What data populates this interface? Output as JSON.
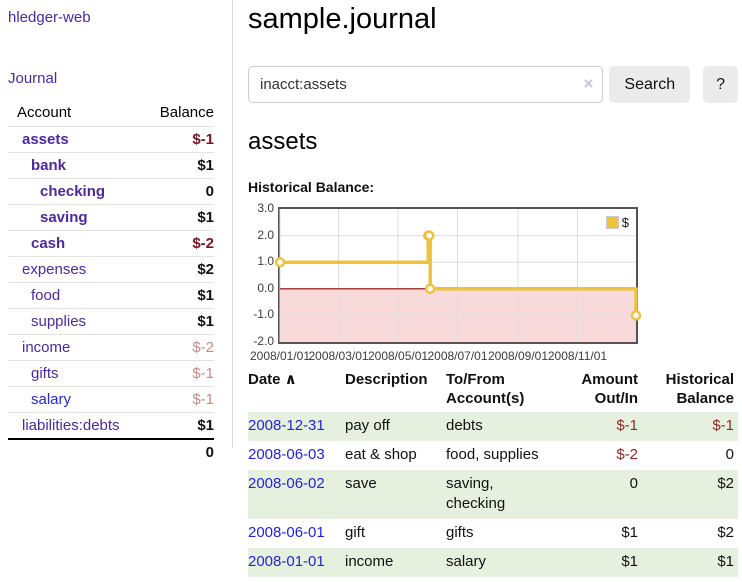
{
  "colors": {
    "link_purple": "#4b2a9a",
    "link_blue": "#2727d4",
    "negative_strong": "#7d1220",
    "negative_soft": "#c68989",
    "negative_table": "#8e2a2a",
    "row_stripe_green": "#e6f0de",
    "series_gold": "#edc240",
    "negative_region_pink": "#f9dada",
    "zero_line_red": "#8b0000",
    "grid_line": "#dddddd",
    "chart_border": "#545454"
  },
  "sidebar": {
    "brand": "hledger-web",
    "journal_link": "Journal",
    "accounts": {
      "header_account": "Account",
      "header_balance": "Balance",
      "rows": [
        {
          "name": "assets",
          "indent": 1,
          "bold": true,
          "balance": "$-1",
          "neg": "strong"
        },
        {
          "name": "bank",
          "indent": 2,
          "bold": true,
          "balance": "$1"
        },
        {
          "name": "checking",
          "indent": 3,
          "bold": true,
          "balance": "0"
        },
        {
          "name": "saving",
          "indent": 3,
          "bold": true,
          "balance": "$1"
        },
        {
          "name": "cash",
          "indent": 2,
          "bold": true,
          "balance": "$-2",
          "neg": "strong"
        },
        {
          "name": "expenses",
          "indent": 1,
          "bold": false,
          "balance": "$2"
        },
        {
          "name": "food",
          "indent": 2,
          "bold": false,
          "balance": "$1"
        },
        {
          "name": "supplies",
          "indent": 2,
          "bold": false,
          "balance": "$1"
        },
        {
          "name": "income",
          "indent": 1,
          "bold": false,
          "balance": "$-2",
          "neg": "soft"
        },
        {
          "name": "gifts",
          "indent": 2,
          "bold": false,
          "balance": "$-1",
          "neg": "soft"
        },
        {
          "name": "salary",
          "indent": 2,
          "bold": false,
          "balance": "$-1",
          "neg": "soft",
          "link_style": "unvisited"
        },
        {
          "name": "liabilities:debts",
          "indent": 1,
          "bold": false,
          "balance": "$1"
        }
      ],
      "total": "0"
    }
  },
  "main": {
    "title": "sample.journal",
    "search": {
      "value": "inacct:assets",
      "clear_icon": "×",
      "search_button": "Search",
      "help_button": "?"
    },
    "account_title": "assets",
    "chart_heading": "Historical Balance:"
  },
  "chart_data": {
    "type": "line",
    "step": true,
    "title": "Historical Balance of assets",
    "series": [
      {
        "name": "$",
        "color": "#edc240",
        "points": [
          [
            "2008-01-01",
            1
          ],
          [
            "2008-06-01",
            2
          ],
          [
            "2008-06-02",
            2
          ],
          [
            "2008-06-03",
            0
          ],
          [
            "2008-12-31",
            -1
          ]
        ]
      }
    ],
    "xlim": [
      "2008-01-01",
      "2008-12-31"
    ],
    "ylim": [
      -2,
      3
    ],
    "x_ticks": [
      "2008/01/01",
      "2008/03/01",
      "2008/05/01",
      "2008/07/01",
      "2008/09/01",
      "2008/11/01"
    ],
    "y_ticks": [
      3,
      2,
      1,
      0,
      -1,
      -2
    ],
    "y_tick_labels": [
      "3.0",
      "2.0",
      "1.0",
      "0.0",
      "-1.0",
      "-2.0"
    ],
    "legend": {
      "label": "$",
      "position": "top-right"
    },
    "grid": true,
    "negative_region_shaded": true
  },
  "transactions": {
    "columns": [
      {
        "label": "Date",
        "sort_indicator": "∧",
        "align": "left"
      },
      {
        "label": "Description",
        "align": "left"
      },
      {
        "label": "To/From Account(s)",
        "align": "left"
      },
      {
        "label": "Amount Out/In",
        "align": "right"
      },
      {
        "label": "Historical Balance",
        "align": "right"
      }
    ],
    "rows": [
      {
        "date": "2008-12-31",
        "description": "pay off",
        "accounts": "debts",
        "amount": "$-1",
        "balance": "$-1"
      },
      {
        "date": "2008-06-03",
        "description": "eat & shop",
        "accounts": "food, supplies",
        "amount": "$-2",
        "balance": "0"
      },
      {
        "date": "2008-06-02",
        "description": "save",
        "accounts": "saving, checking",
        "amount": "0",
        "balance": "$2"
      },
      {
        "date": "2008-06-01",
        "description": "gift",
        "accounts": "gifts",
        "amount": "$1",
        "balance": "$2"
      },
      {
        "date": "2008-01-01",
        "description": "income",
        "accounts": "salary",
        "amount": "$1",
        "balance": "$1"
      }
    ]
  }
}
